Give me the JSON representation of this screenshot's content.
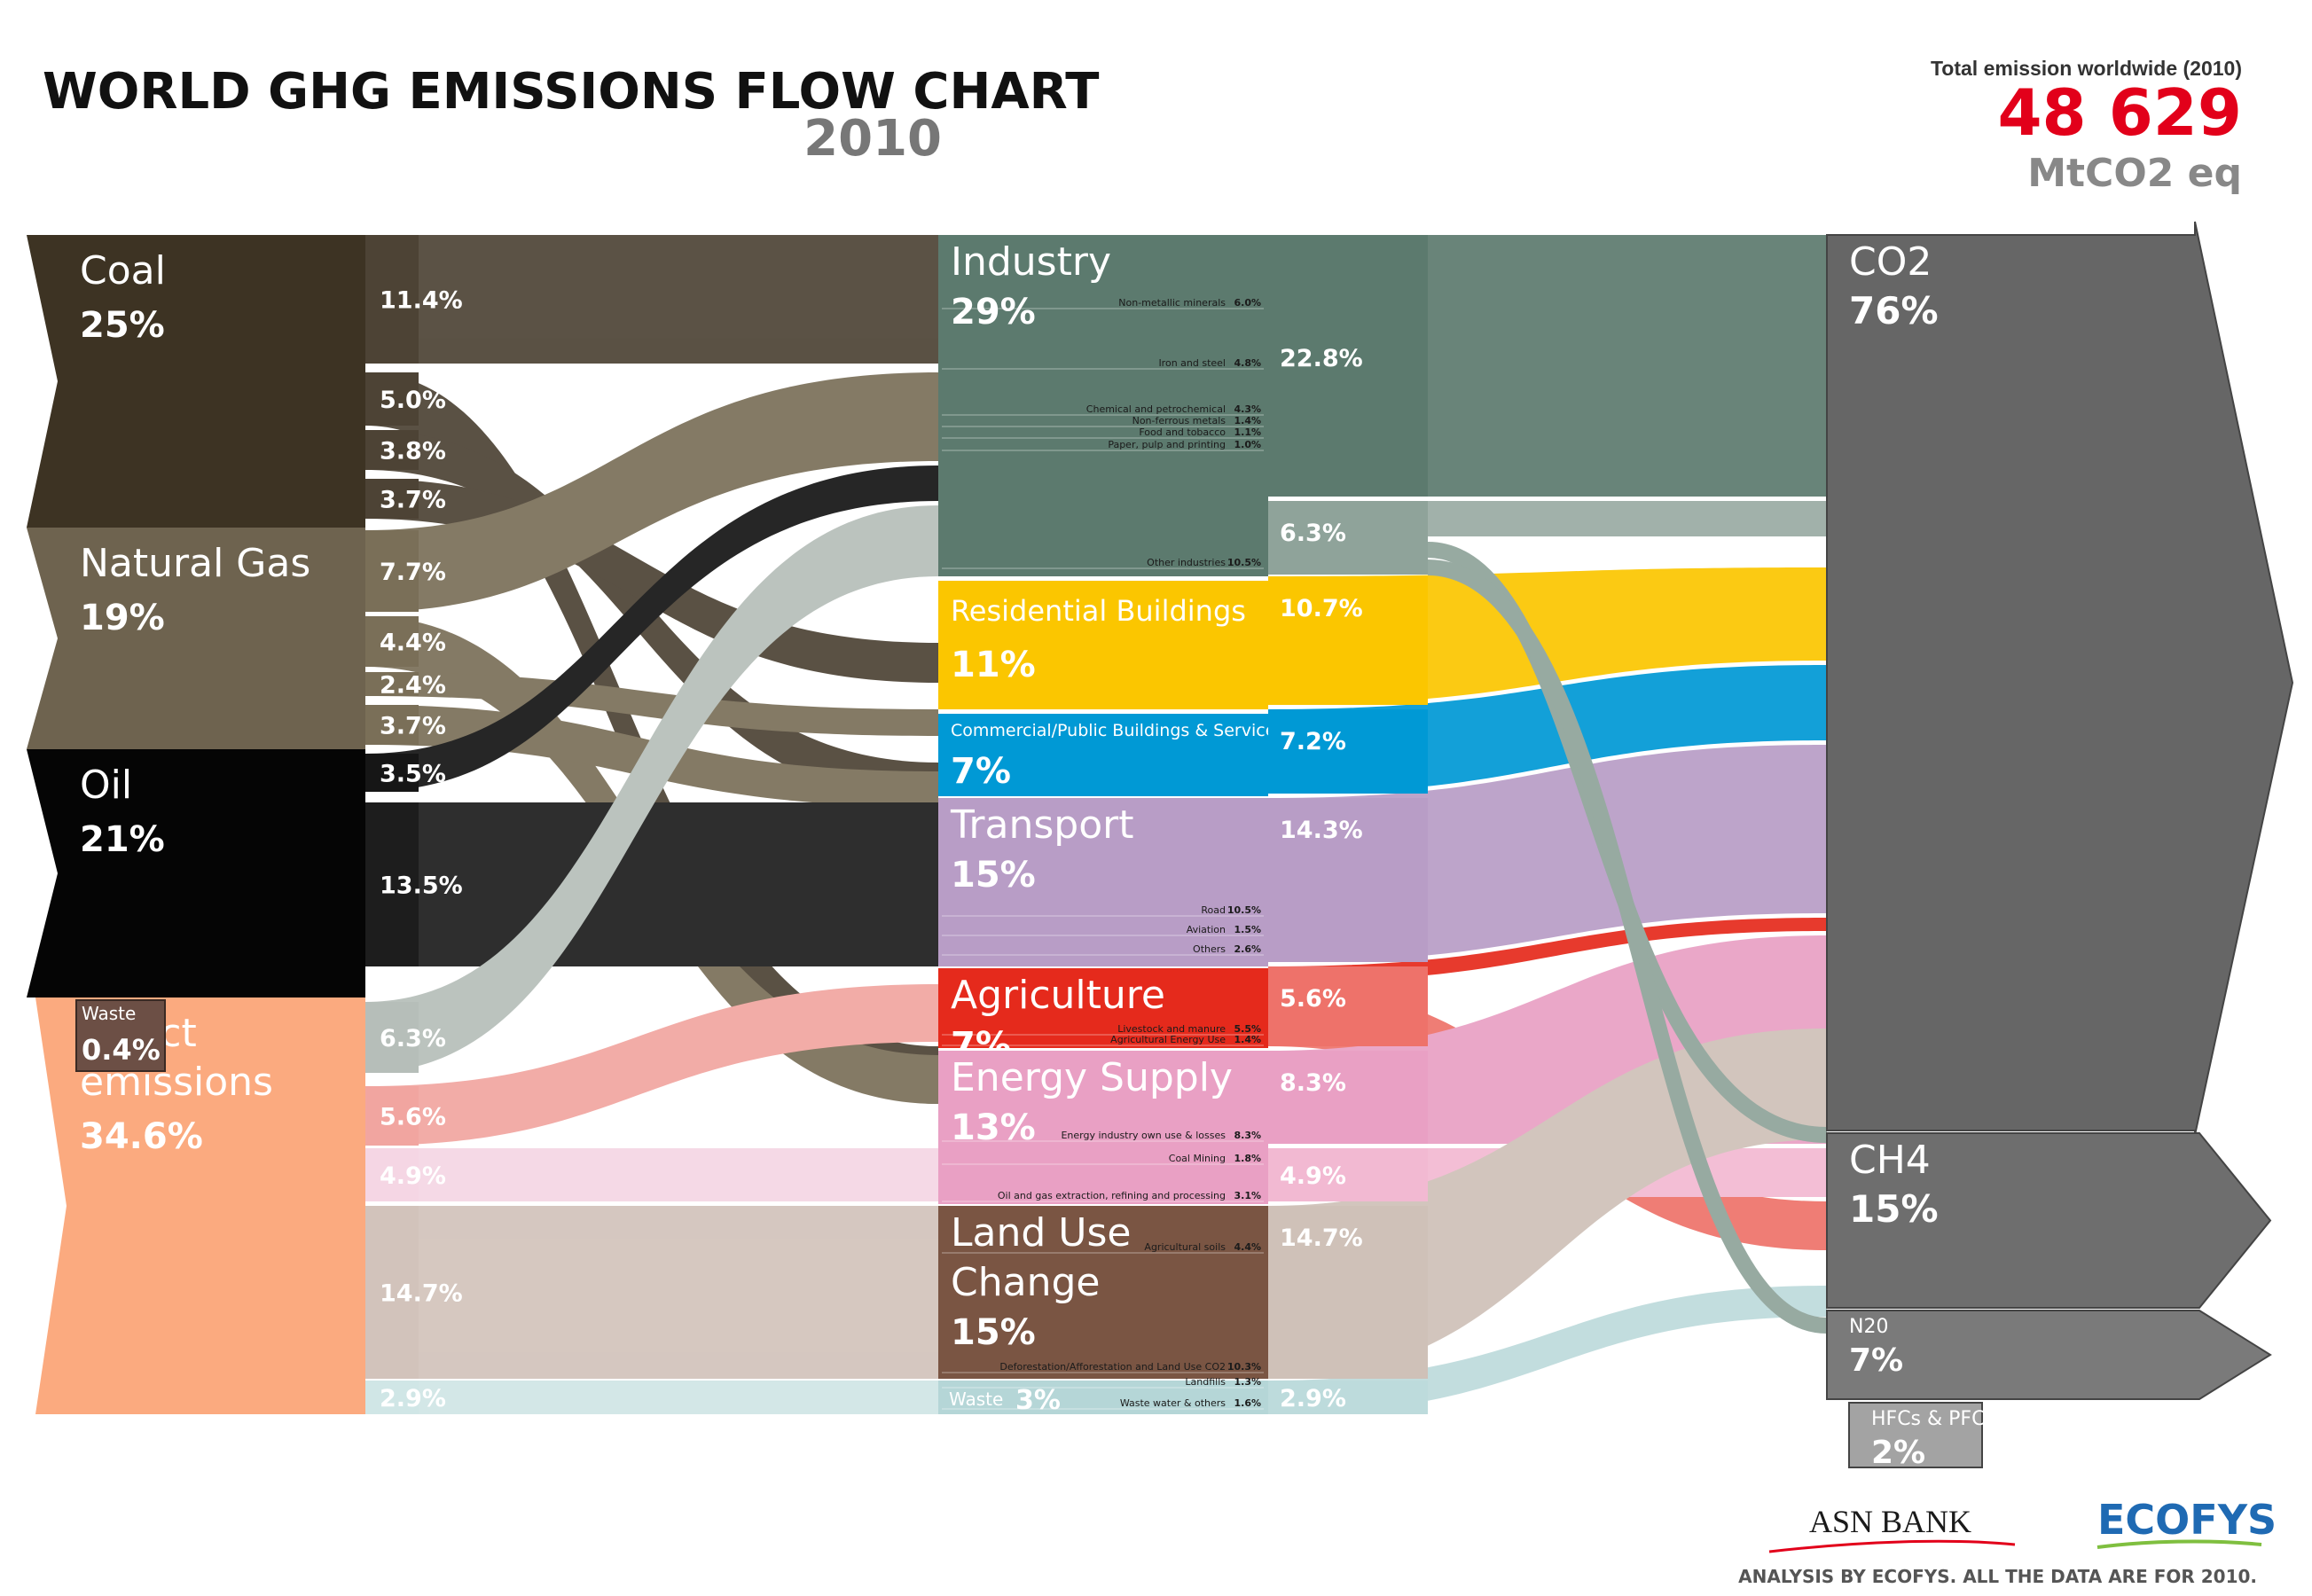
{
  "header": {
    "title": "WORLD GHG EMISSIONS FLOW CHART",
    "year": "2010",
    "total_label": "Total emission worldwide (2010)",
    "total_value": "48 629",
    "total_unit": "MtCO2 eq"
  },
  "sources": [
    {
      "name": "Coal",
      "pct": "25%",
      "color": "#3d3323"
    },
    {
      "name": "Natural Gas",
      "pct": "19%",
      "color": "#6e634f"
    },
    {
      "name": "Oil",
      "pct": "21%",
      "color": "#050505"
    },
    {
      "name": "Direct emissions",
      "name_lines": [
        "Direct",
        "emissions"
      ],
      "pct": "34.6%",
      "color": "#fbaa7f"
    }
  ],
  "waste_source": {
    "name": "Waste",
    "pct": "0.4%",
    "color": "#6c4f45"
  },
  "splits": [
    {
      "label": "11.4%",
      "color": "#4d4335"
    },
    {
      "label": "5.0%",
      "color": "#4d4335"
    },
    {
      "label": "3.8%",
      "color": "#4d4335"
    },
    {
      "label": "3.7%",
      "color": "#4d4335"
    },
    {
      "label": "7.7%",
      "color": "#7a6f58"
    },
    {
      "label": "4.4%",
      "color": "#7a6f58"
    },
    {
      "label": "2.4%",
      "color": "#7a6f58"
    },
    {
      "label": "3.7%",
      "color": "#7a6f58"
    },
    {
      "label": "3.5%",
      "color": "#161616"
    },
    {
      "label": "13.5%",
      "color": "#1d1d1d"
    },
    {
      "label": "6.3%",
      "color": "#b6beb9"
    },
    {
      "label": "5.6%",
      "color": "#f1a5a0"
    },
    {
      "label": "4.9%",
      "color": "#f5d6e4"
    },
    {
      "label": "14.7%",
      "color": "#d2c3bb"
    },
    {
      "label": "2.9%",
      "color": "#d0e6e6"
    }
  ],
  "sectors": [
    {
      "name": "Industry",
      "pct": "29%",
      "color": "#5c7a6e",
      "subs": [
        {
          "name": "Non-metallic minerals",
          "value": "6.0%"
        },
        {
          "name": "Iron and steel",
          "value": "4.8%"
        },
        {
          "name": "Chemical and petrochemical",
          "value": "4.3%"
        },
        {
          "name": "Non-ferrous metals",
          "value": "1.4%"
        },
        {
          "name": "Food and tobacco",
          "value": "1.1%"
        },
        {
          "name": "Paper, pulp and printing",
          "value": "1.0%"
        },
        {
          "name": "Other industries",
          "value": "10.5%"
        }
      ]
    },
    {
      "name": "Residential Buildings",
      "pct": "11%",
      "color": "#fbc600",
      "subs": []
    },
    {
      "name": "Commercial/Public Buildings & Services",
      "pct": "7%",
      "color": "#0099d5",
      "subs": []
    },
    {
      "name": "Transport",
      "pct": "15%",
      "color": "#b89dc6",
      "subs": [
        {
          "name": "Road",
          "value": "10.5%"
        },
        {
          "name": "Aviation",
          "value": "1.5%"
        },
        {
          "name": "Others",
          "value": "2.6%"
        }
      ]
    },
    {
      "name": "Agriculture",
      "pct": "7%",
      "color": "#e52a1c",
      "subs": [
        {
          "name": "Livestock and manure",
          "value": "5.5%"
        },
        {
          "name": "Agricultural Energy Use",
          "value": "1.4%"
        }
      ]
    },
    {
      "name": "Energy Supply",
      "pct": "13%",
      "color": "#e9a0c4",
      "subs": [
        {
          "name": "Energy industry own use & losses",
          "value": "8.3%"
        },
        {
          "name": "Coal Mining",
          "value": "1.8%"
        },
        {
          "name": "Oil and gas extraction, refining and processing",
          "value": "3.1%"
        }
      ]
    },
    {
      "name": "Land Use Change",
      "name_lines": [
        "Land Use",
        "Change"
      ],
      "pct": "15%",
      "color": "#7a5543",
      "subs": [
        {
          "name": "Agricultural soils",
          "value": "4.4%"
        },
        {
          "name": "Deforestation/Afforestation and Land Use CO2",
          "value": "10.3%"
        }
      ]
    },
    {
      "name": "Waste",
      "pct": "3%",
      "color": "#b5d6d7",
      "subs": [
        {
          "name": "Landfills",
          "value": "1.3%"
        },
        {
          "name": "Waste water & others",
          "value": "1.6%"
        }
      ]
    }
  ],
  "sector_outputs": [
    {
      "label": "22.8%",
      "color": "#5c7a6e"
    },
    {
      "label": "6.3%",
      "color": "#8fa39a"
    },
    {
      "label": "10.7%",
      "color": "#fbc600"
    },
    {
      "label": "7.2%",
      "color": "#0099d5"
    },
    {
      "label": "14.3%",
      "color": "#b89dc6"
    },
    {
      "label": "5.6%",
      "color": "#ee726a"
    },
    {
      "label": "8.3%",
      "color": "#e9a0c4"
    },
    {
      "label": "4.9%",
      "color": "#f2b9d2"
    },
    {
      "label": "14.7%",
      "color": "#cfc1b8"
    },
    {
      "label": "2.9%",
      "color": "#bddbdc"
    }
  ],
  "gases": [
    {
      "name": "CO2",
      "pct": "76%",
      "color": "#666666"
    },
    {
      "name": "CH4",
      "pct": "15%",
      "color": "#6e6e6e"
    },
    {
      "name": "N2O",
      "display": "N20",
      "pct": "7%",
      "color": "#7a7a7a"
    },
    {
      "name": "HFCs & PFCs",
      "pct": "2%",
      "color": "#a3a3a3"
    }
  ],
  "footer": {
    "brand1": "ASN BANK",
    "brand2": "ECOFYS",
    "note": "ANALYSIS BY ECOFYS. ALL THE DATA ARE FOR 2010."
  },
  "colors": {
    "accent_red": "#e2001a",
    "title": "#111111",
    "year": "#777777"
  }
}
